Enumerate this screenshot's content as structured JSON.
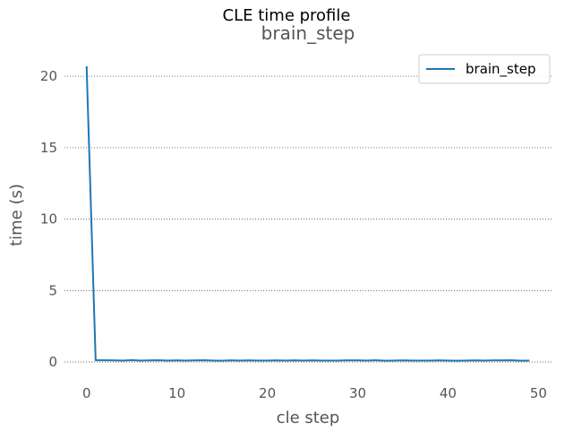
{
  "figure": {
    "suptitle": "CLE time profile"
  },
  "chart_data": {
    "type": "line",
    "title": "brain_step",
    "xlabel": "cle step",
    "ylabel": "time (s)",
    "xlim": [
      -2.45,
      51.45
    ],
    "ylim": [
      -1.0,
      21.7
    ],
    "xticks": [
      0,
      10,
      20,
      30,
      40,
      50
    ],
    "yticks": [
      0,
      5,
      10,
      15,
      20
    ],
    "grid": "y-dotted",
    "legend_position": "top-right",
    "series": [
      {
        "name": "brain_step",
        "color": "#1f77b4",
        "x": [
          0,
          1,
          2,
          3,
          4,
          5,
          6,
          7,
          8,
          9,
          10,
          11,
          12,
          13,
          14,
          15,
          16,
          17,
          18,
          19,
          20,
          21,
          22,
          23,
          24,
          25,
          26,
          27,
          28,
          29,
          30,
          31,
          32,
          33,
          34,
          35,
          36,
          37,
          38,
          39,
          40,
          41,
          42,
          43,
          44,
          45,
          46,
          47,
          48,
          49
        ],
        "values": [
          20.7,
          0.12,
          0.12,
          0.11,
          0.1,
          0.13,
          0.1,
          0.11,
          0.12,
          0.1,
          0.11,
          0.1,
          0.11,
          0.12,
          0.1,
          0.09,
          0.11,
          0.1,
          0.11,
          0.1,
          0.1,
          0.11,
          0.1,
          0.11,
          0.1,
          0.11,
          0.1,
          0.1,
          0.1,
          0.11,
          0.11,
          0.1,
          0.12,
          0.09,
          0.1,
          0.11,
          0.1,
          0.1,
          0.1,
          0.11,
          0.1,
          0.09,
          0.1,
          0.11,
          0.1,
          0.11,
          0.11,
          0.12,
          0.09,
          0.1
        ]
      }
    ]
  }
}
